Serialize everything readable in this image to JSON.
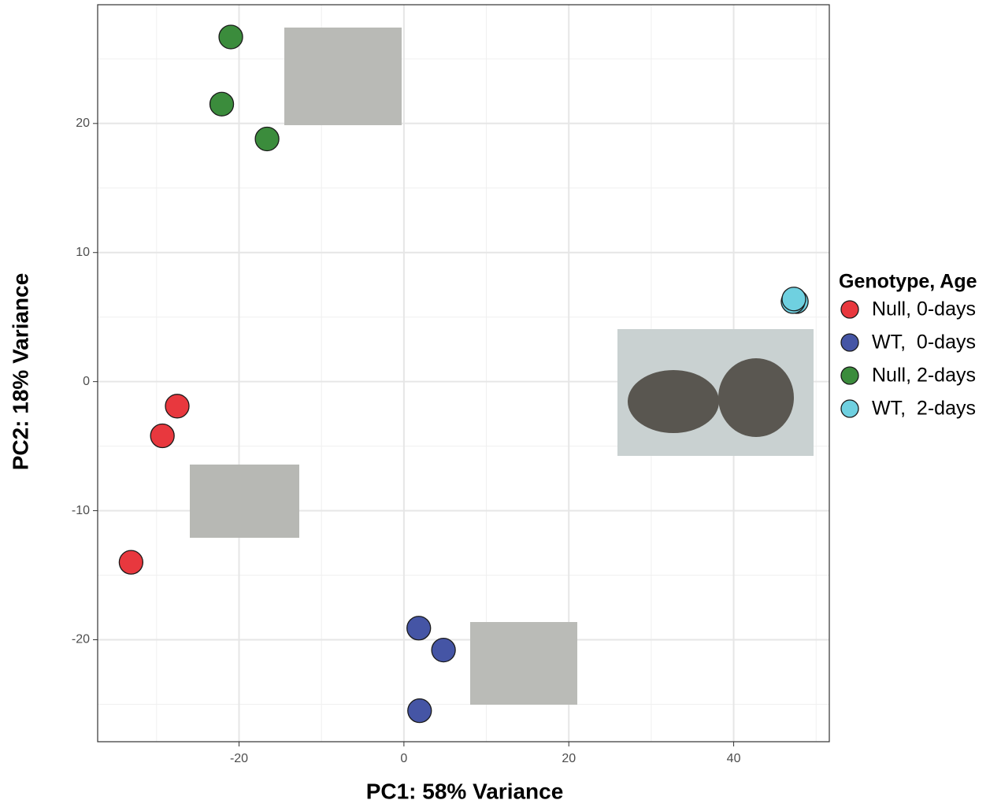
{
  "chart_data": {
    "type": "scatter",
    "x_label": "PC1: 58% Variance",
    "y_label": "PC2: 18% Variance",
    "legend_title": "Genotype, Age",
    "legend": "right",
    "grid": true,
    "xlim": [
      -37.15,
      51.6
    ],
    "ylim": [
      -27.9,
      29.2
    ],
    "xticks": [
      -20,
      0,
      20,
      40
    ],
    "yticks": [
      -20,
      -10,
      0,
      10,
      20
    ],
    "series": [
      {
        "name": "Null, 0-days",
        "color": "#e8383e",
        "x": [
          -27.5,
          -29.3,
          -33.1
        ],
        "y": [
          -1.9,
          -4.2,
          -14.0
        ]
      },
      {
        "name": "WT,  0-days",
        "color": "#4555a5",
        "x": [
          1.8,
          4.8,
          1.9
        ],
        "y": [
          -19.1,
          -20.8,
          -25.5
        ]
      },
      {
        "name": "Null, 2-days",
        "color": "#3b8c3c",
        "x": [
          -21.0,
          -22.1,
          -16.6
        ],
        "y": [
          26.7,
          21.5,
          18.8
        ]
      },
      {
        "name": "WT,  2-days",
        "color": "#6fd0e0",
        "x": [
          47.6,
          47.2,
          47.3
        ],
        "y": [
          6.2,
          6.2,
          6.4
        ]
      }
    ]
  }
}
